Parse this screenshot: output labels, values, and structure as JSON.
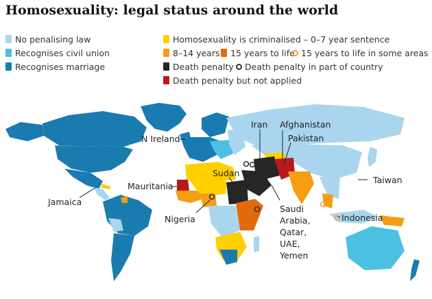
{
  "title": "Homosexuality: legal status around the world",
  "colors": {
    "no_penalising_law": "#a9d5ee",
    "civil_union": "#4cc0e0",
    "marriage": "#1a7bb0",
    "criminalised_0_7": "#ffd000",
    "years_8_14": "#f59e12",
    "years_15_life": "#e06a0c",
    "death_penalty": "#262626",
    "death_not_applied": "#b71a1c",
    "ring_15_life_some": "#f2a14a",
    "ring_death_part": "#333333"
  },
  "legend": {
    "no_penalising_law": "No penalising law",
    "civil_union": "Recognises civil union",
    "marriage": "Recognises marriage",
    "criminalised": "Homosexuality is criminalised",
    "criminalised_suffix": "0–7 year sentence",
    "years_8_14": "8–14 years",
    "years_15_life": "15 years to life",
    "years_15_life_some": "15 years to life in some areas",
    "death_penalty": "Death penalty",
    "death_part": "Death penalty in part of country",
    "death_not_applied": "Death penalty but not applied"
  },
  "map_labels": {
    "iran": "Iran",
    "afghanistan": "Afghanistan",
    "pakistan": "Pakistan",
    "n_ireland": "N Ireland",
    "sudan": "Sudan",
    "mauritania": "Mauritania",
    "taiwan": "Taiwan",
    "jamaica": "Jamaica",
    "nigeria": "Nigeria",
    "saudi": "Saudi",
    "arabia": "Arabia,",
    "qatar": "Qatar,",
    "uae": "UAE,",
    "yemen": "Yemen",
    "indonesia": "Indonesia"
  }
}
